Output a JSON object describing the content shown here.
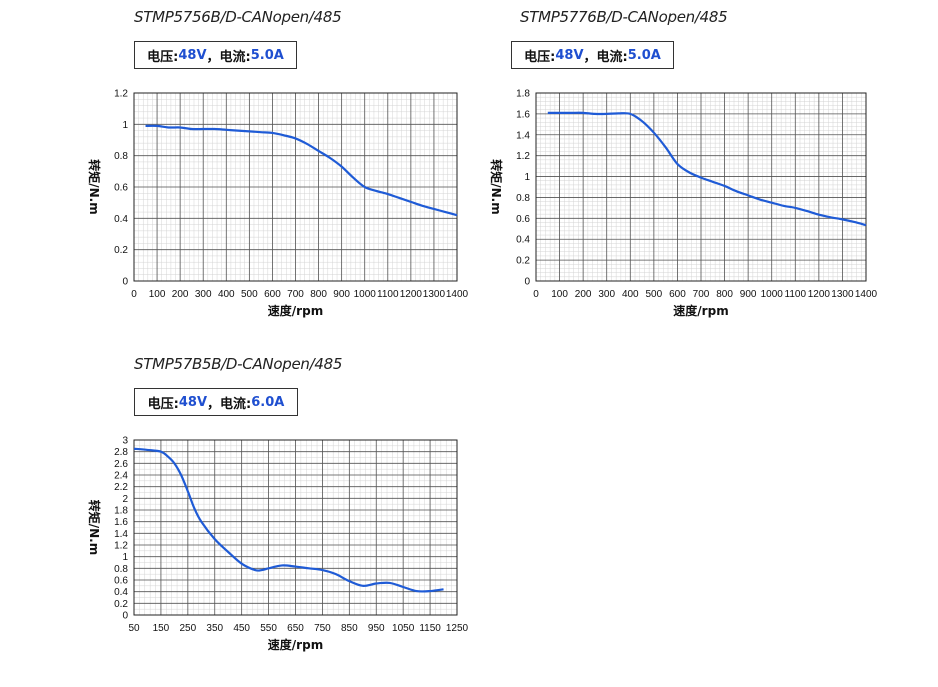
{
  "chart_data": [
    {
      "type": "line",
      "title": "STMP5756B/D-CANopen/485",
      "spec": {
        "voltage_label": "电压:",
        "voltage": "48V",
        "sep": "，",
        "current_label": "电流:",
        "current": "5.0A"
      },
      "xlabel": "速度/rpm",
      "ylabel": "转矩/N.m",
      "xlim": [
        0,
        1400
      ],
      "ylim": [
        0,
        1.2
      ],
      "xticks": [
        0,
        100,
        200,
        300,
        400,
        500,
        600,
        700,
        800,
        900,
        1000,
        1100,
        1200,
        1300,
        1400
      ],
      "yticks": [
        0,
        0.2,
        0.4,
        0.6,
        0.8,
        1,
        1.2
      ],
      "x_minor_step": 20,
      "y_minor_step": 0.04,
      "grid": true,
      "line_color": "#1f5bd6",
      "series": [
        {
          "x": [
            50,
            100,
            150,
            200,
            250,
            300,
            350,
            400,
            450,
            500,
            550,
            600,
            650,
            700,
            750,
            800,
            850,
            900,
            950,
            1000,
            1050,
            1100,
            1150,
            1200,
            1250,
            1300,
            1350,
            1400
          ],
          "y": [
            0.99,
            0.99,
            0.98,
            0.98,
            0.97,
            0.97,
            0.97,
            0.965,
            0.96,
            0.955,
            0.95,
            0.945,
            0.93,
            0.91,
            0.875,
            0.83,
            0.785,
            0.73,
            0.66,
            0.6,
            0.575,
            0.555,
            0.53,
            0.505,
            0.48,
            0.46,
            0.44,
            0.42
          ]
        }
      ]
    },
    {
      "type": "line",
      "title": "STMP5776B/D-CANopen/485",
      "spec": {
        "voltage_label": "电压:",
        "voltage": "48V",
        "sep": "，",
        "current_label": "电流:",
        "current": "5.0A"
      },
      "xlabel": "速度/rpm",
      "ylabel": "转矩/N.m",
      "xlim": [
        0,
        1400
      ],
      "ylim": [
        0,
        1.8
      ],
      "xticks": [
        0,
        100,
        200,
        300,
        400,
        500,
        600,
        700,
        800,
        900,
        1000,
        1100,
        1200,
        1300,
        1400
      ],
      "yticks": [
        0,
        0.2,
        0.4,
        0.6,
        0.8,
        1,
        1.2,
        1.4,
        1.6,
        1.8
      ],
      "x_minor_step": 20,
      "y_minor_step": 0.04,
      "grid": true,
      "line_color": "#1f5bd6",
      "series": [
        {
          "x": [
            50,
            100,
            150,
            200,
            250,
            300,
            350,
            400,
            450,
            500,
            550,
            600,
            650,
            700,
            750,
            800,
            850,
            900,
            950,
            1000,
            1050,
            1100,
            1150,
            1200,
            1250,
            1300,
            1350,
            1400
          ],
          "y": [
            1.61,
            1.61,
            1.61,
            1.61,
            1.6,
            1.6,
            1.605,
            1.6,
            1.53,
            1.42,
            1.28,
            1.12,
            1.04,
            0.99,
            0.95,
            0.91,
            0.86,
            0.82,
            0.78,
            0.75,
            0.72,
            0.7,
            0.67,
            0.635,
            0.61,
            0.59,
            0.565,
            0.535
          ]
        }
      ]
    },
    {
      "type": "line",
      "title": "STMP57B5B/D-CANopen/485",
      "spec": {
        "voltage_label": "电压:",
        "voltage": "48V",
        "sep": "，",
        "current_label": "电流:",
        "current": "6.0A"
      },
      "xlabel": "速度/rpm",
      "ylabel": "转矩/N.m",
      "xlim": [
        50,
        1250
      ],
      "ylim": [
        0,
        3
      ],
      "xticks": [
        50,
        150,
        250,
        350,
        450,
        550,
        650,
        750,
        850,
        950,
        1050,
        1150,
        1250
      ],
      "yticks": [
        0,
        0.2,
        0.4,
        0.6,
        0.8,
        1,
        1.2,
        1.4,
        1.6,
        1.8,
        2,
        2.2,
        2.4,
        2.6,
        2.8,
        3
      ],
      "x_minor_step": 20,
      "y_minor_step": 0.1,
      "grid": true,
      "line_color": "#1f5bd6",
      "series": [
        {
          "x": [
            50,
            100,
            150,
            175,
            200,
            225,
            250,
            275,
            300,
            350,
            400,
            450,
            500,
            525,
            550,
            600,
            650,
            700,
            750,
            800,
            850,
            900,
            950,
            1000,
            1050,
            1100,
            1150,
            1200
          ],
          "y": [
            2.85,
            2.83,
            2.8,
            2.72,
            2.6,
            2.4,
            2.12,
            1.82,
            1.6,
            1.3,
            1.08,
            0.88,
            0.77,
            0.77,
            0.8,
            0.85,
            0.83,
            0.8,
            0.77,
            0.7,
            0.58,
            0.5,
            0.54,
            0.55,
            0.48,
            0.41,
            0.41,
            0.44
          ]
        }
      ]
    }
  ]
}
